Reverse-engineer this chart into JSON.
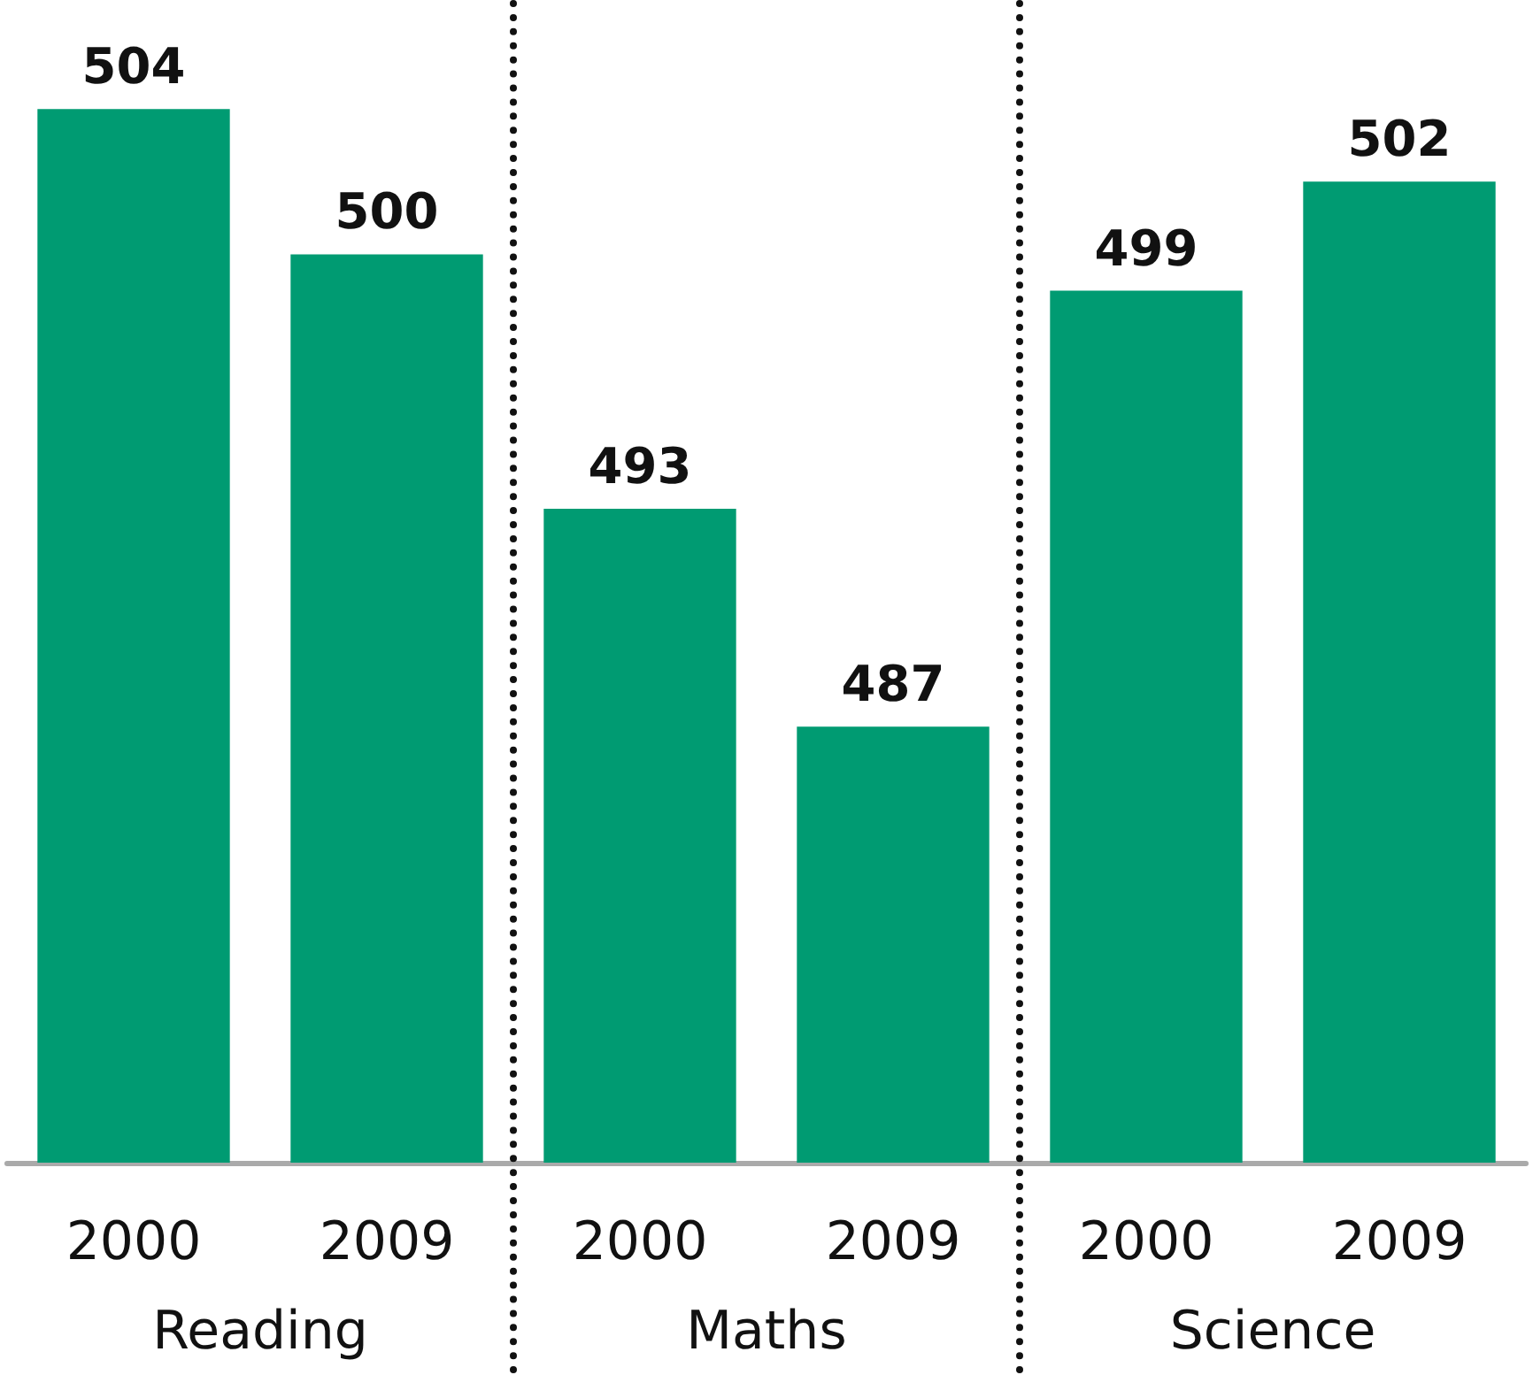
{
  "chart_data": {
    "type": "bar",
    "categories": [
      "2000",
      "2009",
      "2000",
      "2009",
      "2000",
      "2009"
    ],
    "values": [
      504,
      500,
      493,
      487,
      499,
      502
    ],
    "color": "#009b72",
    "ylim": [
      475,
      507
    ],
    "tick_labels": "x",
    "data_labels": true,
    "annotations": [
      "Reading",
      "Maths",
      "Science"
    ]
  }
}
